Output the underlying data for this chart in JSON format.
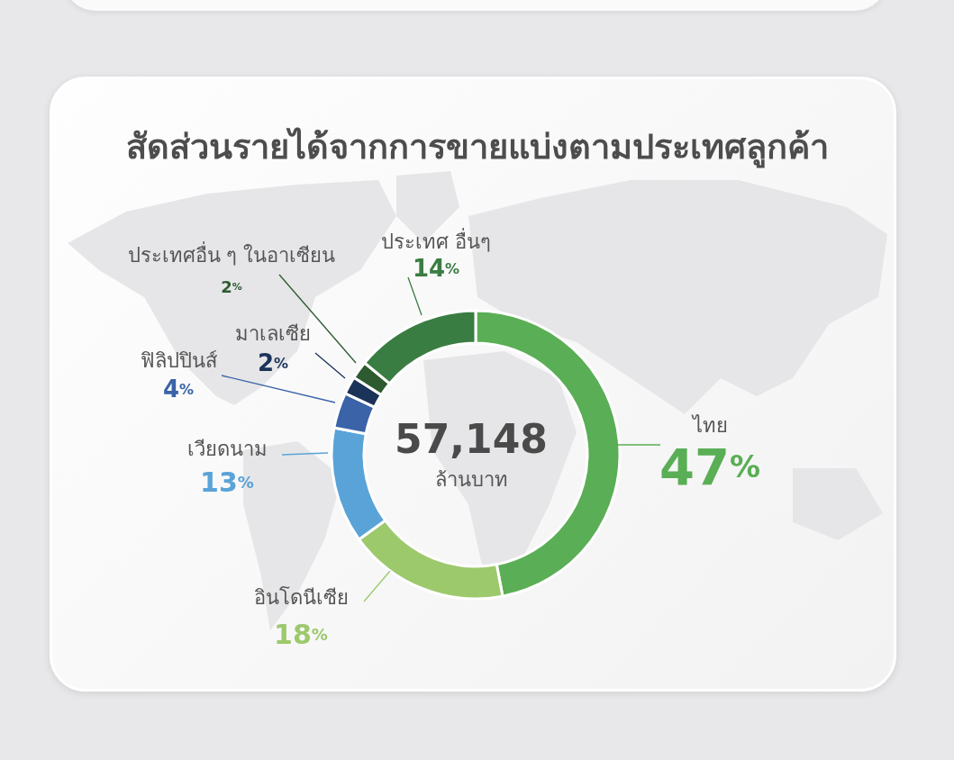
{
  "chart_data": {
    "type": "donut",
    "title": "สัดส่วนรายได้จากการขายแบ่งตามประเทศลูกค้า",
    "categories": [
      "ไทย",
      "อินโดนีเซีย",
      "เวียดนาม",
      "ฟิลิปปินส์",
      "มาเลเซีย",
      "ประเทศอื่น ๆ ในอาเซียน",
      "ประเทศ อื่นๆ"
    ],
    "values": [
      47,
      18,
      13,
      4,
      2,
      2,
      14
    ],
    "colors": [
      "#5aae55",
      "#9dc96d",
      "#5aa3d8",
      "#3a63a8",
      "#1b3358",
      "#2d5a2f",
      "#3a7d42"
    ],
    "value_labels": [
      "47%",
      "18%",
      "13%",
      "4%",
      "2%",
      "2%",
      "14%"
    ],
    "annotations": [
      "57,148",
      "ล้านบาท"
    ]
  }
}
